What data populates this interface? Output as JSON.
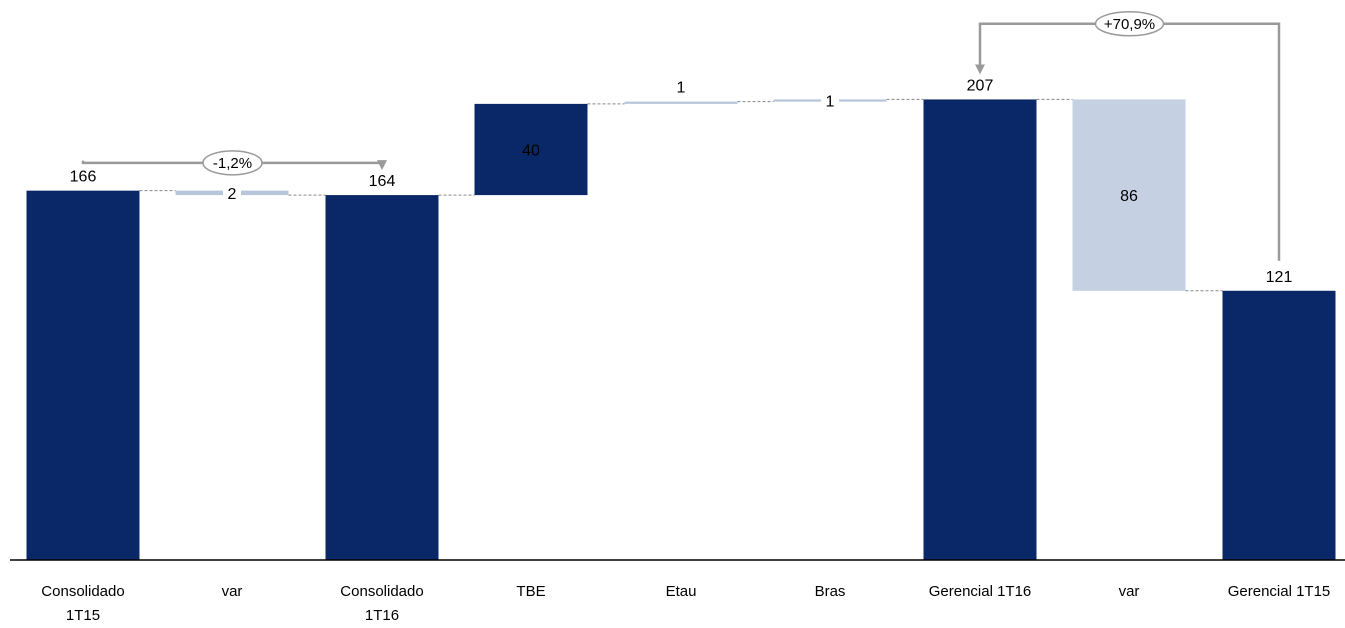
{
  "chart_data": {
    "type": "bar",
    "subtype": "waterfall",
    "title": "",
    "xlabel": "",
    "ylabel": "",
    "ylim": [
      0,
      230
    ],
    "grid": false,
    "legend": "none",
    "categories": [
      {
        "lines": [
          "Consolidado",
          "1T15"
        ]
      },
      {
        "lines": [
          "var"
        ]
      },
      {
        "lines": [
          "Consolidado",
          "1T16"
        ]
      },
      {
        "lines": [
          "TBE"
        ]
      },
      {
        "lines": [
          "Etau"
        ]
      },
      {
        "lines": [
          "Bras"
        ]
      },
      {
        "lines": [
          "Gerencial 1T16"
        ]
      },
      {
        "lines": [
          "var"
        ]
      },
      {
        "lines": [
          "Gerencial 1T15"
        ]
      }
    ],
    "bars": [
      {
        "kind": "total",
        "bottom": 0,
        "top": 166,
        "label": "166",
        "label_pos": "above"
      },
      {
        "kind": "delta-neg",
        "bottom": 164,
        "top": 166,
        "label": "2",
        "label_pos": "inline"
      },
      {
        "kind": "total",
        "bottom": 0,
        "top": 164,
        "label": "164",
        "label_pos": "above"
      },
      {
        "kind": "delta-pos",
        "bottom": 164,
        "top": 205,
        "label": "40",
        "label_pos": "inside"
      },
      {
        "kind": "delta-pos",
        "bottom": 205,
        "top": 206,
        "label": "1",
        "label_pos": "above"
      },
      {
        "kind": "delta-pos",
        "bottom": 206,
        "top": 207,
        "label": "1",
        "label_pos": "inline"
      },
      {
        "kind": "total",
        "bottom": 0,
        "top": 207,
        "label": "207",
        "label_pos": "above"
      },
      {
        "kind": "delta-neg",
        "bottom": 121,
        "top": 207,
        "label": "86",
        "label_pos": "inside"
      },
      {
        "kind": "total",
        "bottom": 0,
        "top": 121,
        "label": "121",
        "label_pos": "above"
      }
    ],
    "annotations": [
      {
        "text": "-1,2%",
        "from": 0,
        "to": 2
      },
      {
        "text": "+70,9%",
        "from": 8,
        "to": 6
      }
    ],
    "colors": {
      "total": "#0a2868",
      "delta_pos": "#0a2868",
      "delta_neg": "#c5d0e3",
      "thin_delta": "#b8c6dc",
      "connector": "#888888",
      "arrow": "#9a9a9a",
      "axis": "#000000"
    }
  }
}
